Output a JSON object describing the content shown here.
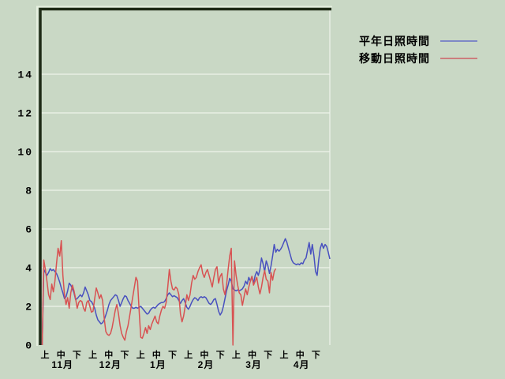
{
  "legend": {
    "items": [
      {
        "label": "平年日照時間",
        "color": "#7e88c6",
        "series_color": "#4850bf"
      },
      {
        "label": "移動日照時間",
        "color": "#cc7e7e",
        "series_color": "#d85252"
      }
    ]
  },
  "colors": {
    "background": "#c9d8c5",
    "gridline": "#edf3ea",
    "border_dark": "#1e2a16",
    "border_highlight": "#e6efe0",
    "right_edge": "#eef3ec",
    "text": "#000000"
  },
  "chart_data": {
    "type": "line",
    "title": "",
    "xlabel": "",
    "ylabel": "",
    "ylim": [
      0,
      16.6
    ],
    "yticks": [
      0,
      2,
      4,
      6,
      8,
      10,
      12,
      14
    ],
    "grid": "horizontal-only",
    "legend_position": "right-top",
    "x_axis": {
      "period_labels": [
        "上",
        "中",
        "下"
      ],
      "month_labels": [
        "11月",
        "12月",
        "1月",
        "2月",
        "3月",
        "4月"
      ],
      "unit": "day (11月1日〜4月30日)"
    },
    "series": [
      {
        "name": "平年日照時間",
        "color": "#4850bf",
        "values": [
          0,
          3.9,
          3.75,
          3.6,
          3.75,
          3.95,
          3.85,
          3.9,
          3.8,
          3.7,
          3.5,
          3.25,
          2.95,
          2.7,
          2.4,
          2.5,
          2.8,
          3.2,
          3.1,
          2.9,
          2.7,
          2.35,
          2.4,
          2.5,
          2.6,
          2.5,
          2.7,
          3.0,
          2.8,
          2.6,
          2.3,
          2.25,
          2.1,
          1.9,
          1.55,
          1.3,
          1.2,
          1.1,
          1.15,
          1.3,
          1.55,
          1.8,
          2.1,
          2.3,
          2.4,
          2.5,
          2.6,
          2.55,
          2.3,
          2.0,
          2.2,
          2.4,
          2.55,
          2.5,
          2.3,
          2.15,
          2.0,
          1.9,
          1.9,
          1.95,
          1.9,
          1.95,
          2.0,
          1.9,
          1.8,
          1.7,
          1.6,
          1.65,
          1.8,
          1.9,
          1.95,
          1.9,
          2.0,
          2.1,
          2.15,
          2.2,
          2.2,
          2.25,
          2.4,
          2.6,
          2.7,
          2.6,
          2.5,
          2.55,
          2.5,
          2.45,
          2.3,
          2.15,
          2.3,
          2.4,
          2.2,
          1.95,
          1.85,
          2.0,
          2.2,
          2.35,
          2.45,
          2.4,
          2.3,
          2.45,
          2.5,
          2.45,
          2.5,
          2.45,
          2.3,
          2.15,
          2.1,
          2.2,
          2.35,
          2.4,
          2.1,
          1.75,
          1.55,
          1.7,
          2.0,
          2.4,
          2.8,
          3.1,
          3.45,
          3.3,
          2.9,
          2.85,
          2.8,
          2.85,
          2.8,
          2.85,
          2.9,
          3.05,
          3.3,
          3.15,
          3.5,
          3.3,
          3.55,
          3.2,
          3.6,
          3.8,
          3.6,
          3.9,
          4.5,
          4.2,
          3.8,
          4.35,
          4.1,
          3.7,
          4.1,
          4.6,
          5.2,
          4.8,
          4.95,
          4.85,
          4.95,
          5.1,
          5.3,
          5.5,
          5.3,
          5.0,
          4.7,
          4.4,
          4.25,
          4.2,
          4.15,
          4.2,
          4.15,
          4.25,
          4.2,
          4.4,
          4.5,
          4.9,
          5.3,
          4.7,
          5.2,
          4.6,
          3.8,
          3.6,
          4.4,
          5.0,
          5.25,
          5.0,
          5.2,
          5.1,
          4.8,
          4.45
        ]
      },
      {
        "name": "移動日照時間",
        "color": "#d85252",
        "values": [
          0,
          4.4,
          3.9,
          3.3,
          2.6,
          2.35,
          3.15,
          2.75,
          3.3,
          4.2,
          5.0,
          4.6,
          5.4,
          3.6,
          2.6,
          2.1,
          2.45,
          1.9,
          2.7,
          3.1,
          2.8,
          2.4,
          1.9,
          2.2,
          2.3,
          2.25,
          1.9,
          1.75,
          2.2,
          2.3,
          2.0,
          1.7,
          1.75,
          2.4,
          2.95,
          2.7,
          2.4,
          2.6,
          2.3,
          1.4,
          0.7,
          0.55,
          0.5,
          0.6,
          0.9,
          1.35,
          1.8,
          2.1,
          1.6,
          1.0,
          0.6,
          0.4,
          0.25,
          0.7,
          1.0,
          1.5,
          2.0,
          2.5,
          3.0,
          3.5,
          3.3,
          1.8,
          0.4,
          0.35,
          0.6,
          0.9,
          0.6,
          1.0,
          0.8,
          1.1,
          1.3,
          1.5,
          1.2,
          1.1,
          1.5,
          1.8,
          2.0,
          1.9,
          2.2,
          3.0,
          3.9,
          3.3,
          2.9,
          2.85,
          3.0,
          2.9,
          2.6,
          1.6,
          1.2,
          1.5,
          2.0,
          2.6,
          2.3,
          2.6,
          3.2,
          3.6,
          3.4,
          3.5,
          3.8,
          4.0,
          4.15,
          3.7,
          3.5,
          3.75,
          3.9,
          3.6,
          3.3,
          3.0,
          3.5,
          3.9,
          4.05,
          3.2,
          3.55,
          3.7,
          2.9,
          2.6,
          3.1,
          3.9,
          4.6,
          5.0,
          0.0,
          4.35,
          3.6,
          3.1,
          2.7,
          2.6,
          2.05,
          2.5,
          2.9,
          2.6,
          3.0,
          3.3,
          3.55,
          3.1,
          3.3,
          3.5,
          3.0,
          2.65,
          3.0,
          3.5,
          3.85,
          3.4,
          3.3,
          2.7,
          3.75,
          3.35,
          3.8,
          3.95
        ]
      }
    ],
    "total_days": 182
  }
}
